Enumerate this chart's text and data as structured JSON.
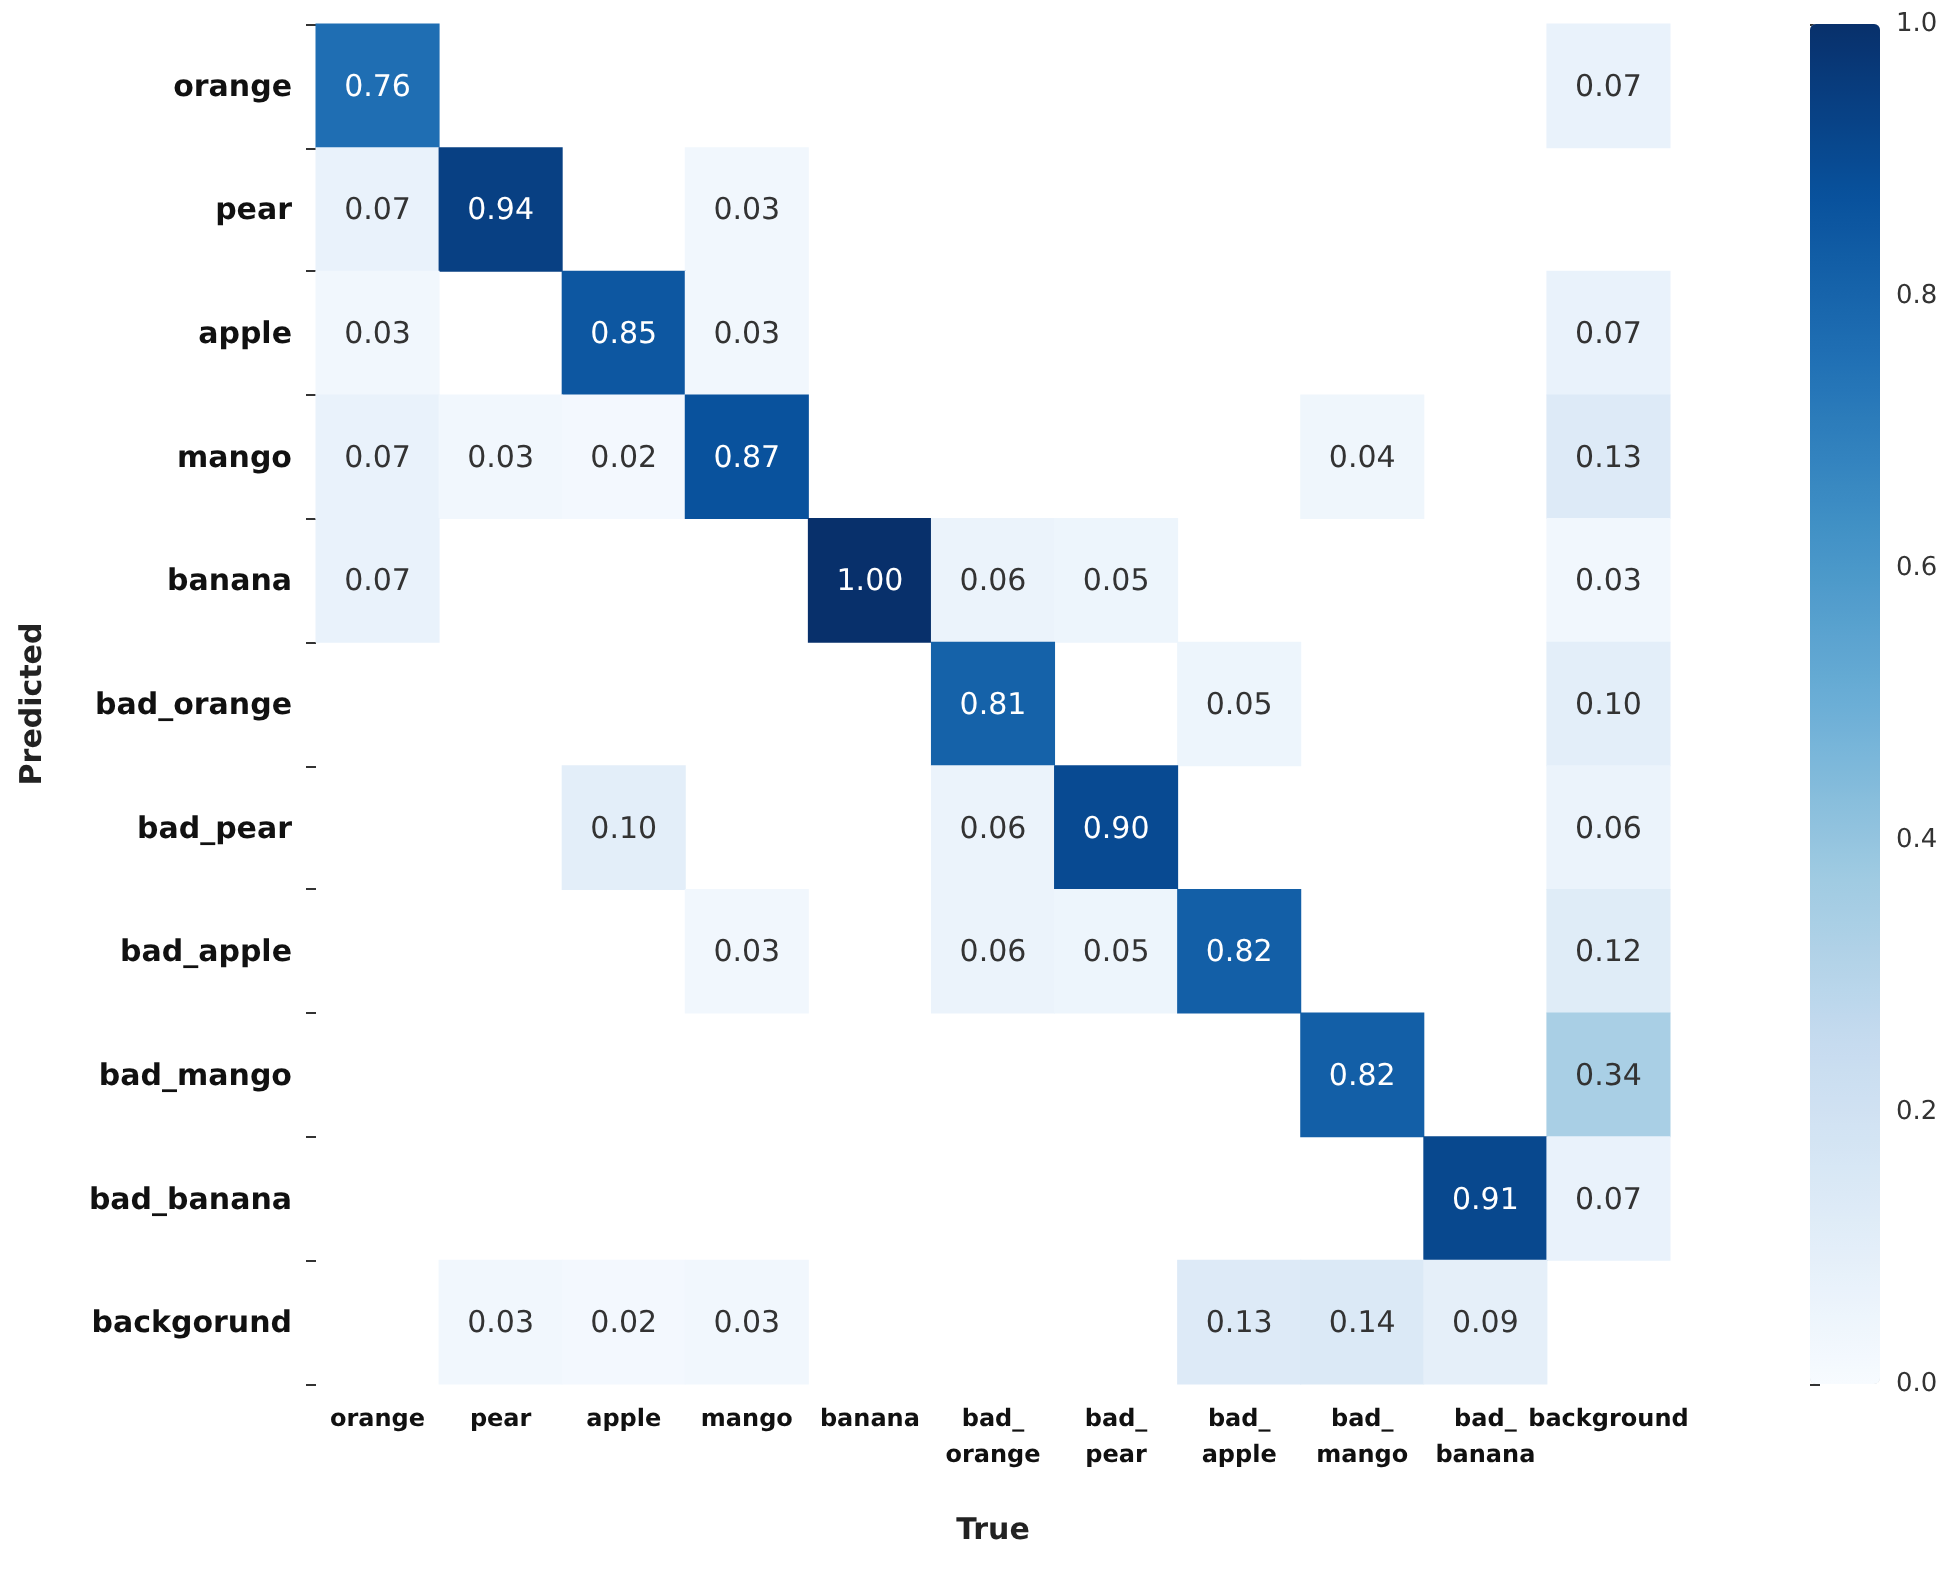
{
  "chart_data": {
    "type": "heatmap",
    "xlabel": "True",
    "ylabel": "Predicted",
    "categories": [
      "orange",
      "pear",
      "apple",
      "mango",
      "banana",
      "bad_\norange",
      "bad_\npear",
      "bad_\napple",
      "bad_\nmango",
      "bad_\nbanana",
      "background"
    ],
    "y_categories": [
      "orange",
      "pear",
      "apple",
      "mango",
      "banana",
      "bad_orange",
      "bad_pear",
      "bad_apple",
      "bad_mango",
      "bad_banana",
      "backgorund"
    ],
    "cells": [
      [
        0.76,
        null,
        null,
        null,
        null,
        null,
        null,
        null,
        null,
        null,
        0.07
      ],
      [
        0.07,
        0.94,
        null,
        0.03,
        null,
        null,
        null,
        null,
        null,
        null,
        null
      ],
      [
        0.03,
        null,
        0.85,
        0.03,
        null,
        null,
        null,
        null,
        null,
        null,
        0.07
      ],
      [
        0.07,
        0.03,
        0.02,
        0.87,
        null,
        null,
        null,
        null,
        0.04,
        null,
        0.13
      ],
      [
        0.07,
        null,
        null,
        null,
        1.0,
        0.06,
        0.05,
        null,
        null,
        null,
        0.03
      ],
      [
        null,
        null,
        null,
        null,
        null,
        0.81,
        null,
        0.05,
        null,
        null,
        0.1
      ],
      [
        null,
        null,
        0.1,
        null,
        null,
        0.06,
        0.9,
        null,
        null,
        null,
        0.06
      ],
      [
        null,
        null,
        null,
        0.03,
        null,
        0.06,
        0.05,
        0.82,
        null,
        null,
        0.12
      ],
      [
        null,
        null,
        null,
        null,
        null,
        null,
        null,
        null,
        0.82,
        null,
        0.34
      ],
      [
        null,
        null,
        null,
        null,
        null,
        null,
        null,
        null,
        null,
        0.91,
        0.07
      ],
      [
        null,
        0.03,
        0.02,
        0.03,
        null,
        null,
        null,
        0.13,
        0.14,
        0.09,
        null
      ]
    ],
    "cell_labels": [
      [
        "0.76",
        null,
        null,
        null,
        null,
        null,
        null,
        null,
        null,
        null,
        "0.07"
      ],
      [
        "0.07",
        "0.94",
        null,
        "0.03",
        null,
        null,
        null,
        null,
        null,
        null,
        null
      ],
      [
        "0.03",
        null,
        "0.85",
        "0.03",
        null,
        null,
        null,
        null,
        null,
        null,
        "0.07"
      ],
      [
        "0.07",
        "0.03",
        "0.02",
        "0.87",
        null,
        null,
        null,
        null,
        "0.04",
        null,
        "0.13"
      ],
      [
        "0.07",
        null,
        null,
        null,
        "1.00",
        "0.06",
        "0.05",
        null,
        null,
        null,
        "0.03"
      ],
      [
        null,
        null,
        null,
        null,
        null,
        "0.81",
        null,
        "0.05",
        null,
        null,
        "0.10"
      ],
      [
        null,
        null,
        "0.10",
        null,
        null,
        "0.06",
        "0.90",
        null,
        null,
        null,
        "0.06"
      ],
      [
        null,
        null,
        null,
        "0.03",
        null,
        "0.06",
        "0.05",
        "0.82",
        null,
        null,
        "0.12"
      ],
      [
        null,
        null,
        null,
        null,
        null,
        null,
        null,
        null,
        "0.82",
        null,
        "0.34"
      ],
      [
        null,
        null,
        null,
        null,
        null,
        null,
        null,
        null,
        null,
        "0.91",
        "0.07"
      ],
      [
        null,
        "0.03",
        "0.02",
        "0.03",
        null,
        null,
        null,
        "0.13",
        "0.14",
        "0.09",
        null
      ]
    ],
    "data_labels": true,
    "clim": [
      0,
      1
    ],
    "cticks": [
      {
        "value": 0,
        "label": "0.0"
      },
      {
        "value": 0.2,
        "label": "0.2"
      },
      {
        "value": 0.4,
        "label": "0.4"
      },
      {
        "value": 0.6,
        "label": "0.6"
      },
      {
        "value": 0.8,
        "label": "0.8"
      },
      {
        "value": 1,
        "label": "1.0"
      }
    ]
  }
}
